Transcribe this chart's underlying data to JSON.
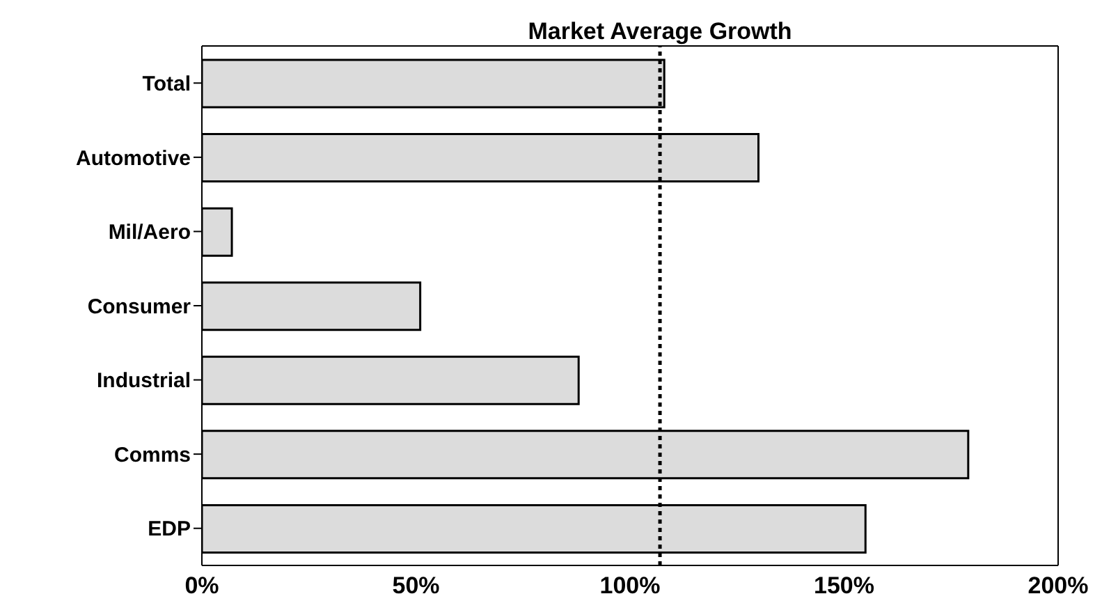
{
  "chart_data": {
    "type": "bar",
    "orientation": "horizontal",
    "categories": [
      "Total",
      "Automotive",
      "Mil/Aero",
      "Consumer",
      "Industrial",
      "Comms",
      "EDP"
    ],
    "values": [
      108,
      130,
      7,
      51,
      88,
      179,
      155
    ],
    "color": "#dcdcdc",
    "xlim": [
      0,
      200
    ],
    "xticks": [
      {
        "value": 0,
        "label": "0%"
      },
      {
        "value": 50,
        "label": "50%"
      },
      {
        "value": 100,
        "label": "100%"
      },
      {
        "value": 150,
        "label": "150%"
      },
      {
        "value": 200,
        "label": "200%"
      }
    ],
    "ref_lines": [
      {
        "axis": "x",
        "value": 107,
        "label": "Market Average Growth",
        "line_style": "dotted",
        "color": "#000000"
      }
    ],
    "grid": false
  }
}
